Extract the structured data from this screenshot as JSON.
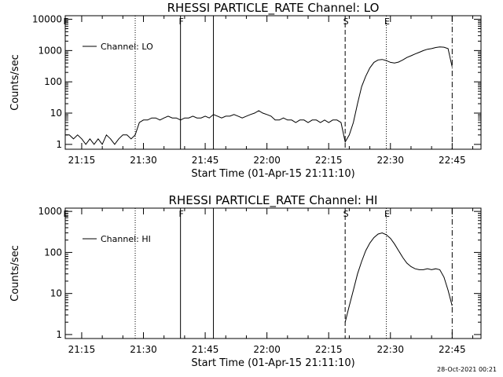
{
  "footer": {
    "timestamp": "28-Oct-2021 00:21"
  },
  "chart_data": [
    {
      "type": "line",
      "title": "RHESSI PARTICLE_RATE Channel: LO",
      "xlabel": "Start Time (01-Apr-15 21:11:10)",
      "ylabel": "Counts/sec",
      "yscale": "log",
      "ylim": [
        0.7,
        13000
      ],
      "xlim": [
        "21:11",
        "22:52"
      ],
      "xticks": [
        "21:15",
        "21:30",
        "21:45",
        "22:00",
        "22:15",
        "22:30",
        "22:45"
      ],
      "yticks": [
        "1",
        "10",
        "100",
        "1000",
        "10000"
      ],
      "legend": {
        "label": "Channel: LO",
        "position": "top-left"
      },
      "markers": [
        {
          "label": "E",
          "time": "21:11",
          "style": "dotted"
        },
        {
          "label": "",
          "time": "21:28",
          "style": "dotted"
        },
        {
          "label": "F",
          "time": "21:39",
          "style": "solid"
        },
        {
          "label": "",
          "time": "21:47",
          "style": "solid"
        },
        {
          "label": "S",
          "time": "22:19",
          "style": "dashed"
        },
        {
          "label": "E",
          "time": "22:29",
          "style": "dotted"
        },
        {
          "label": "",
          "time": "22:45",
          "style": "dashdot"
        }
      ],
      "series": [
        {
          "name": "Channel: LO",
          "x": [
            "21:11",
            "21:12",
            "21:13",
            "21:14",
            "21:15",
            "21:16",
            "21:17",
            "21:18",
            "21:19",
            "21:20",
            "21:21",
            "21:22",
            "21:23",
            "21:24",
            "21:25",
            "21:26",
            "21:27",
            "21:28",
            "21:29",
            "21:30",
            "21:31",
            "21:32",
            "21:33",
            "21:34",
            "21:35",
            "21:36",
            "21:37",
            "21:38",
            "21:39",
            "21:40",
            "21:41",
            "21:42",
            "21:43",
            "21:44",
            "21:45",
            "21:46",
            "21:47",
            "21:48",
            "21:49",
            "21:50",
            "21:51",
            "21:52",
            "21:53",
            "21:54",
            "21:55",
            "21:56",
            "21:57",
            "21:58",
            "21:59",
            "22:00",
            "22:01",
            "22:02",
            "22:03",
            "22:04",
            "22:05",
            "22:06",
            "22:07",
            "22:08",
            "22:09",
            "22:10",
            "22:11",
            "22:12",
            "22:13",
            "22:14",
            "22:15",
            "22:16",
            "22:17",
            "22:18",
            "22:19",
            "22:20",
            "22:21",
            "22:22",
            "22:23",
            "22:24",
            "22:25",
            "22:26",
            "22:27",
            "22:28",
            "22:29",
            "22:30",
            "22:31",
            "22:32",
            "22:33",
            "22:34",
            "22:35",
            "22:36",
            "22:37",
            "22:38",
            "22:39",
            "22:40",
            "22:41",
            "22:42",
            "22:43",
            "22:44",
            "22:45"
          ],
          "values": [
            2,
            2,
            1.5,
            2,
            1.5,
            1,
            1.5,
            1,
            1.5,
            1,
            2,
            1.5,
            1,
            1.5,
            2,
            2,
            1.5,
            2,
            5,
            6,
            6,
            7,
            7,
            6,
            7,
            8,
            7,
            7,
            6,
            7,
            7,
            8,
            7,
            7,
            8,
            7,
            9,
            8,
            7,
            8,
            8,
            9,
            8,
            7,
            8,
            9,
            10,
            12,
            10,
            9,
            8,
            6,
            6,
            7,
            6,
            6,
            5,
            6,
            6,
            5,
            6,
            6,
            5,
            6,
            5,
            6,
            6,
            5,
            1.2,
            2,
            5,
            20,
            70,
            150,
            280,
            420,
            500,
            520,
            480,
            420,
            400,
            430,
            500,
            600,
            680,
            780,
            880,
            1000,
            1100,
            1150,
            1250,
            1300,
            1280,
            1150,
            300
          ]
        }
      ]
    },
    {
      "type": "line",
      "title": "RHESSI PARTICLE_RATE Channel: HI",
      "xlabel": "Start Time (01-Apr-15 21:11:10)",
      "ylabel": "Counts/sec",
      "yscale": "log",
      "ylim": [
        0.8,
        1200
      ],
      "xlim": [
        "21:11",
        "22:52"
      ],
      "xticks": [
        "21:15",
        "21:30",
        "21:45",
        "22:00",
        "22:15",
        "22:30",
        "22:45"
      ],
      "yticks": [
        "1",
        "10",
        "100",
        "1000"
      ],
      "legend": {
        "label": "Channel: HI",
        "position": "top-left"
      },
      "markers": [
        {
          "label": "E",
          "time": "21:11",
          "style": "dotted"
        },
        {
          "label": "",
          "time": "21:28",
          "style": "dotted"
        },
        {
          "label": "F",
          "time": "21:39",
          "style": "solid"
        },
        {
          "label": "",
          "time": "21:47",
          "style": "solid"
        },
        {
          "label": "S",
          "time": "22:19",
          "style": "dashed"
        },
        {
          "label": "E",
          "time": "22:29",
          "style": "dotted"
        },
        {
          "label": "",
          "time": "22:45",
          "style": "dashdot"
        }
      ],
      "series": [
        {
          "name": "Channel: HI",
          "x": [
            "22:19",
            "22:20",
            "22:21",
            "22:22",
            "22:23",
            "22:24",
            "22:25",
            "22:26",
            "22:27",
            "22:28",
            "22:29",
            "22:30",
            "22:31",
            "22:32",
            "22:33",
            "22:34",
            "22:35",
            "22:36",
            "22:37",
            "22:38",
            "22:39",
            "22:40",
            "22:41",
            "22:42",
            "22:43",
            "22:44",
            "22:45"
          ],
          "values": [
            2,
            5,
            12,
            30,
            60,
            110,
            170,
            230,
            280,
            300,
            270,
            220,
            160,
            110,
            75,
            55,
            45,
            40,
            38,
            38,
            40,
            38,
            40,
            38,
            25,
            12,
            5
          ]
        }
      ]
    }
  ]
}
